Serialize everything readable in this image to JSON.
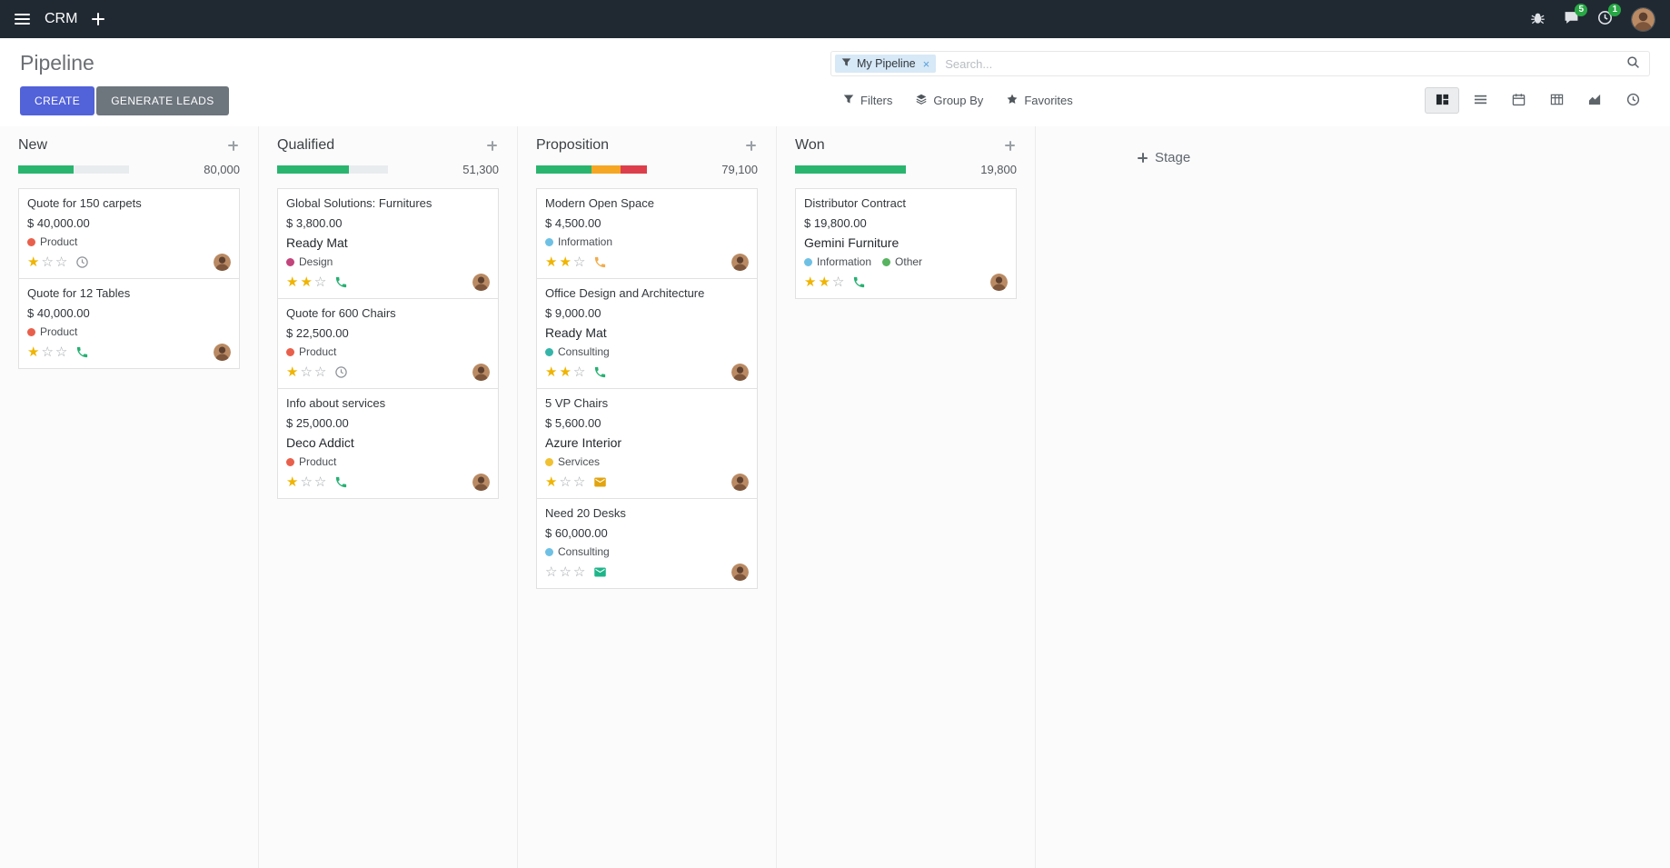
{
  "colors": {
    "topbar_bg": "#202932",
    "primary": "#5262d9",
    "secondary": "#6d757d",
    "badge": "#28a745",
    "star": "#efb400"
  },
  "topbar": {
    "app_name": "CRM",
    "systray": {
      "messages_badge": "5",
      "activities_badge": "1"
    }
  },
  "control_panel": {
    "title": "Pipeline",
    "create_label": "CREATE",
    "generate_leads_label": "GENERATE LEADS",
    "search": {
      "facet_value": "My Pipeline",
      "facet_remove": "×",
      "placeholder": "Search..."
    },
    "filters_label": "Filters",
    "group_by_label": "Group By",
    "favorites_label": "Favorites",
    "active_view": "kanban"
  },
  "icons": {
    "apps_menu": "hamburger",
    "search": "magnifier",
    "filters": "funnel",
    "group_by": "layers",
    "favorites": "star",
    "views": [
      "kanban",
      "list",
      "calendar",
      "pivot",
      "graph",
      "activity"
    ],
    "systray": [
      "bug",
      "messages",
      "activities",
      "avatar"
    ],
    "card_activity": [
      "clock",
      "phone",
      "envelope"
    ]
  },
  "board": {
    "add_stage_label": "Stage",
    "columns": [
      {
        "name": "New",
        "total": "80,000",
        "progress": [
          {
            "color": "#2ab56f",
            "pct": 50
          }
        ],
        "cards": [
          {
            "title": "Quote for 150 carpets",
            "amount": "$ 40,000.00",
            "partner": "",
            "tags": [
              {
                "label": "Product",
                "color": "#e8604c"
              }
            ],
            "stars": 1,
            "activity": {
              "icon": "clock",
              "color": "#8f9499"
            }
          },
          {
            "title": "Quote for 12 Tables",
            "amount": "$ 40,000.00",
            "partner": "",
            "tags": [
              {
                "label": "Product",
                "color": "#e8604c"
              }
            ],
            "stars": 1,
            "activity": {
              "icon": "phone",
              "color": "#27b072"
            }
          }
        ]
      },
      {
        "name": "Qualified",
        "total": "51,300",
        "progress": [
          {
            "color": "#2ab56f",
            "pct": 65
          }
        ],
        "cards": [
          {
            "title": "Global Solutions: Furnitures",
            "amount": "$ 3,800.00",
            "partner": "Ready Mat",
            "tags": [
              {
                "label": "Design",
                "color": "#c2457c"
              }
            ],
            "stars": 2,
            "activity": {
              "icon": "phone",
              "color": "#27b072"
            }
          },
          {
            "title": "Quote for 600 Chairs",
            "amount": "$ 22,500.00",
            "partner": "",
            "tags": [
              {
                "label": "Product",
                "color": "#e8604c"
              }
            ],
            "stars": 1,
            "activity": {
              "icon": "clock",
              "color": "#8f9499"
            }
          },
          {
            "title": "Info about services",
            "amount": "$ 25,000.00",
            "partner": "Deco Addict",
            "tags": [
              {
                "label": "Product",
                "color": "#e8604c"
              }
            ],
            "stars": 1,
            "activity": {
              "icon": "phone",
              "color": "#27b072"
            }
          }
        ]
      },
      {
        "name": "Proposition",
        "total": "79,100",
        "progress": [
          {
            "color": "#2ab56f",
            "pct": 50
          },
          {
            "color": "#f5a623",
            "pct": 26
          },
          {
            "color": "#dd3e4b",
            "pct": 24
          }
        ],
        "cards": [
          {
            "title": "Modern Open Space",
            "amount": "$ 4,500.00",
            "partner": "",
            "tags": [
              {
                "label": "Information",
                "color": "#6ec1e4"
              }
            ],
            "stars": 2,
            "activity": {
              "icon": "phone",
              "color": "#f0ad4e"
            }
          },
          {
            "title": "Office Design and Architecture",
            "amount": "$ 9,000.00",
            "partner": "Ready Mat",
            "tags": [
              {
                "label": "Consulting",
                "color": "#35b5aa"
              }
            ],
            "stars": 2,
            "activity": {
              "icon": "phone",
              "color": "#27b072"
            }
          },
          {
            "title": "5 VP Chairs",
            "amount": "$ 5,600.00",
            "partner": "Azure Interior",
            "tags": [
              {
                "label": "Services",
                "color": "#f0c132"
              }
            ],
            "stars": 1,
            "activity": {
              "icon": "envelope",
              "color": "#e2a40f"
            }
          },
          {
            "title": "Need 20 Desks",
            "amount": "$ 60,000.00",
            "partner": "",
            "tags": [
              {
                "label": "Consulting",
                "color": "#6ec1e4"
              }
            ],
            "stars": 0,
            "activity": {
              "icon": "envelope",
              "color": "#1fb58a"
            }
          }
        ]
      },
      {
        "name": "Won",
        "total": "19,800",
        "progress": [
          {
            "color": "#2ab56f",
            "pct": 100
          }
        ],
        "cards": [
          {
            "title": "Distributor Contract",
            "amount": "$ 19,800.00",
            "partner": "Gemini Furniture",
            "tags": [
              {
                "label": "Information",
                "color": "#6ec1e4"
              },
              {
                "label": "Other",
                "color": "#57b35f"
              }
            ],
            "stars": 2,
            "activity": {
              "icon": "phone",
              "color": "#27b072"
            }
          }
        ]
      }
    ]
  }
}
